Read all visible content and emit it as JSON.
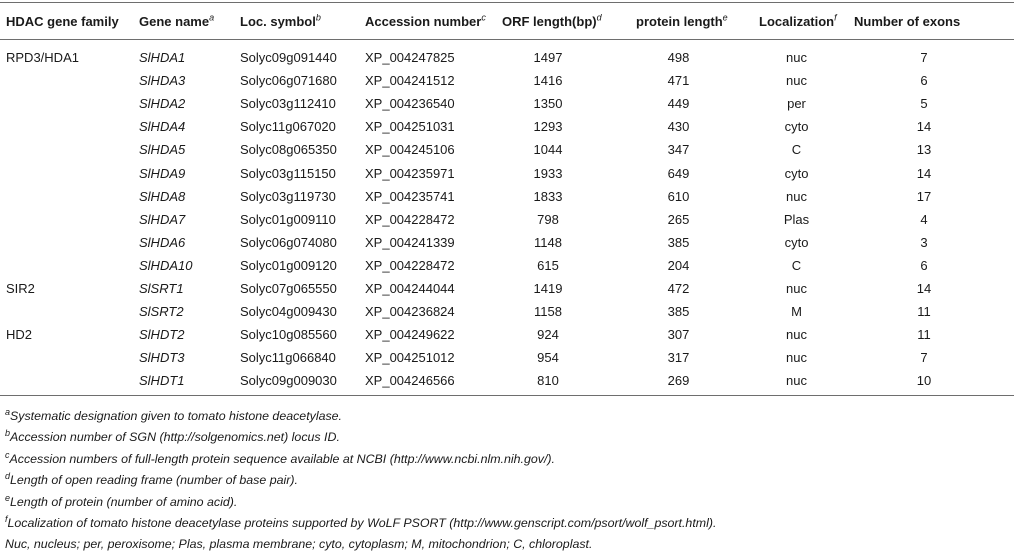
{
  "table": {
    "headers": {
      "family": "HDAC gene family",
      "gene": "Gene name",
      "gene_sup": "a",
      "loc": "Loc. symbol",
      "loc_sup": "b",
      "acc": "Accession number",
      "acc_sup": "c",
      "orf": "ORF length(bp)",
      "orf_sup": "d",
      "prot": "protein length",
      "prot_sup": "e",
      "local": "Localization",
      "local_sup": "f",
      "exons": "Number of exons"
    },
    "rows": [
      {
        "family": "RPD3/HDA1",
        "gene": "SlHDA1",
        "loc": "Solyc09g091440",
        "acc": "XP_004247825",
        "orf": "1497",
        "prot": "498",
        "local": "nuc",
        "exons": "7"
      },
      {
        "family": "",
        "gene": "SlHDA3",
        "loc": "Solyc06g071680",
        "acc": "XP_004241512",
        "orf": "1416",
        "prot": "471",
        "local": "nuc",
        "exons": "6"
      },
      {
        "family": "",
        "gene": "SlHDA2",
        "loc": "Solyc03g112410",
        "acc": "XP_004236540",
        "orf": "1350",
        "prot": "449",
        "local": "per",
        "exons": "5"
      },
      {
        "family": "",
        "gene": "SlHDA4",
        "loc": "Solyc11g067020",
        "acc": "XP_004251031",
        "orf": "1293",
        "prot": "430",
        "local": "cyto",
        "exons": "14"
      },
      {
        "family": "",
        "gene": "SlHDA5",
        "loc": "Solyc08g065350",
        "acc": "XP_004245106",
        "orf": "1044",
        "prot": "347",
        "local": "C",
        "exons": "13"
      },
      {
        "family": "",
        "gene": "SlHDA9",
        "loc": "Solyc03g115150",
        "acc": "XP_004235971",
        "orf": "1933",
        "prot": "649",
        "local": "cyto",
        "exons": "14"
      },
      {
        "family": "",
        "gene": "SlHDA8",
        "loc": "Solyc03g119730",
        "acc": "XP_004235741",
        "orf": "1833",
        "prot": "610",
        "local": "nuc",
        "exons": "17"
      },
      {
        "family": "",
        "gene": "SlHDA7",
        "loc": "Solyc01g009110",
        "acc": "XP_004228472",
        "orf": "798",
        "prot": "265",
        "local": "Plas",
        "exons": "4"
      },
      {
        "family": "",
        "gene": "SlHDA6",
        "loc": "Solyc06g074080",
        "acc": "XP_004241339",
        "orf": "1148",
        "prot": "385",
        "local": "cyto",
        "exons": "3"
      },
      {
        "family": "",
        "gene": "SlHDA10",
        "loc": "Solyc01g009120",
        "acc": "XP_004228472",
        "orf": "615",
        "prot": "204",
        "local": "C",
        "exons": "6"
      },
      {
        "family": "SIR2",
        "gene": "SlSRT1",
        "loc": "Solyc07g065550",
        "acc": "XP_004244044",
        "orf": "1419",
        "prot": "472",
        "local": "nuc",
        "exons": "14"
      },
      {
        "family": "",
        "gene": "SlSRT2",
        "loc": "Solyc04g009430",
        "acc": "XP_004236824",
        "orf": "1158",
        "prot": "385",
        "local": "M",
        "exons": "11"
      },
      {
        "family": "HD2",
        "gene": "SlHDT2",
        "loc": "Solyc10g085560",
        "acc": "XP_004249622",
        "orf": "924",
        "prot": "307",
        "local": "nuc",
        "exons": "11"
      },
      {
        "family": "",
        "gene": "SlHDT3",
        "loc": "Solyc11g066840",
        "acc": "XP_004251012",
        "orf": "954",
        "prot": "317",
        "local": "nuc",
        "exons": "7"
      },
      {
        "family": "",
        "gene": "SlHDT1",
        "loc": "Solyc09g009030",
        "acc": "XP_004246566",
        "orf": "810",
        "prot": "269",
        "local": "nuc",
        "exons": "10"
      }
    ]
  },
  "footnotes": [
    {
      "mark": "a",
      "text": "Systematic designation given to tomato histone deacetylase."
    },
    {
      "mark": "b",
      "text": "Accession number of SGN (http://solgenomics.net) locus ID."
    },
    {
      "mark": "c",
      "text": "Accession numbers of full-length protein sequence available at NCBI (http://www.ncbi.nlm.nih.gov/)."
    },
    {
      "mark": "d",
      "text": "Length of open reading frame (number of base pair)."
    },
    {
      "mark": "e",
      "text": "Length of protein (number of amino acid)."
    },
    {
      "mark": "f",
      "text": "Localization of tomato histone deacetylase proteins supported by WoLF PSORT (http://www.genscript.com/psort/wolf_psort.html)."
    },
    {
      "mark": "",
      "text": "Nuc, nucleus; per, peroxisome; Plas, plasma membrane; cyto, cytoplasm; M, mitochondrion; C, chloroplast."
    }
  ]
}
